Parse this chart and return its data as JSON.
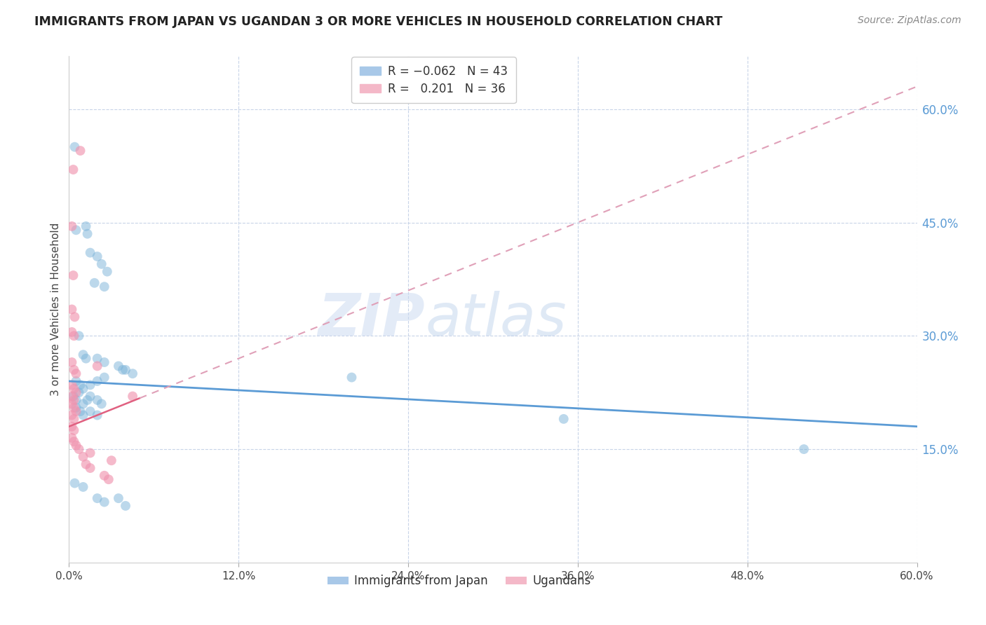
{
  "title": "IMMIGRANTS FROM JAPAN VS UGANDAN 3 OR MORE VEHICLES IN HOUSEHOLD CORRELATION CHART",
  "source": "Source: ZipAtlas.com",
  "ylabel": "3 or more Vehicles in Household",
  "xmin": 0.0,
  "xmax": 60.0,
  "ymin": 0.0,
  "ymax": 67.0,
  "yticks": [
    15.0,
    30.0,
    45.0,
    60.0
  ],
  "xticks": [
    0.0,
    12.0,
    24.0,
    36.0,
    48.0,
    60.0
  ],
  "legend_label_japan": "Immigrants from Japan",
  "legend_label_ugandan": "Ugandans",
  "japan_color": "#7ab3d9",
  "ugandan_color": "#f095b0",
  "watermark_zip": "ZIP",
  "watermark_atlas": "atlas",
  "background_color": "#ffffff",
  "grid_color": "#c8d4e8",
  "japan_points": [
    [
      0.4,
      55.0
    ],
    [
      0.5,
      44.0
    ],
    [
      1.2,
      44.5
    ],
    [
      1.3,
      43.5
    ],
    [
      1.5,
      41.0
    ],
    [
      2.0,
      40.5
    ],
    [
      2.3,
      39.5
    ],
    [
      2.7,
      38.5
    ],
    [
      1.8,
      37.0
    ],
    [
      2.5,
      36.5
    ],
    [
      0.7,
      30.0
    ],
    [
      1.0,
      27.5
    ],
    [
      1.2,
      27.0
    ],
    [
      2.0,
      27.0
    ],
    [
      2.5,
      26.5
    ],
    [
      3.5,
      26.0
    ],
    [
      3.8,
      25.5
    ],
    [
      0.5,
      24.0
    ],
    [
      0.8,
      23.5
    ],
    [
      1.0,
      23.0
    ],
    [
      1.5,
      23.5
    ],
    [
      2.0,
      24.0
    ],
    [
      2.5,
      24.5
    ],
    [
      0.3,
      22.0
    ],
    [
      0.5,
      21.5
    ],
    [
      0.7,
      22.5
    ],
    [
      1.0,
      21.0
    ],
    [
      1.3,
      21.5
    ],
    [
      1.5,
      22.0
    ],
    [
      2.0,
      21.5
    ],
    [
      2.3,
      21.0
    ],
    [
      0.5,
      20.5
    ],
    [
      0.8,
      20.0
    ],
    [
      1.0,
      19.5
    ],
    [
      1.5,
      20.0
    ],
    [
      2.0,
      19.5
    ],
    [
      4.0,
      25.5
    ],
    [
      4.5,
      25.0
    ],
    [
      0.4,
      10.5
    ],
    [
      1.0,
      10.0
    ],
    [
      2.0,
      8.5
    ],
    [
      2.5,
      8.0
    ],
    [
      3.5,
      8.5
    ],
    [
      4.0,
      7.5
    ],
    [
      20.0,
      24.5
    ],
    [
      35.0,
      19.0
    ],
    [
      52.0,
      15.0
    ]
  ],
  "ugandan_points": [
    [
      0.3,
      52.0
    ],
    [
      0.8,
      54.5
    ],
    [
      0.2,
      44.5
    ],
    [
      0.3,
      38.0
    ],
    [
      0.2,
      33.5
    ],
    [
      0.4,
      32.5
    ],
    [
      0.2,
      30.5
    ],
    [
      0.35,
      30.0
    ],
    [
      0.2,
      26.5
    ],
    [
      0.35,
      25.5
    ],
    [
      0.5,
      25.0
    ],
    [
      0.2,
      23.5
    ],
    [
      0.35,
      23.0
    ],
    [
      0.5,
      22.5
    ],
    [
      0.2,
      22.0
    ],
    [
      0.35,
      21.5
    ],
    [
      0.2,
      21.0
    ],
    [
      0.35,
      20.5
    ],
    [
      0.5,
      20.0
    ],
    [
      0.2,
      19.5
    ],
    [
      0.35,
      19.0
    ],
    [
      0.2,
      18.0
    ],
    [
      0.35,
      17.5
    ],
    [
      0.2,
      16.5
    ],
    [
      0.35,
      16.0
    ],
    [
      1.2,
      13.0
    ],
    [
      1.5,
      12.5
    ],
    [
      2.5,
      11.5
    ],
    [
      2.8,
      11.0
    ],
    [
      1.5,
      14.5
    ],
    [
      2.0,
      26.0
    ],
    [
      4.5,
      22.0
    ],
    [
      0.5,
      15.5
    ],
    [
      0.7,
      15.0
    ],
    [
      1.0,
      14.0
    ],
    [
      3.0,
      13.5
    ]
  ],
  "japan_trend_y0": 24.0,
  "japan_trend_y1": 18.0,
  "ugandan_trend_x0": 0.0,
  "ugandan_trend_y0": 18.0,
  "ugandan_trend_x1": 60.0,
  "ugandan_trend_y1": 63.0,
  "ugandan_solid_x1": 5.0
}
